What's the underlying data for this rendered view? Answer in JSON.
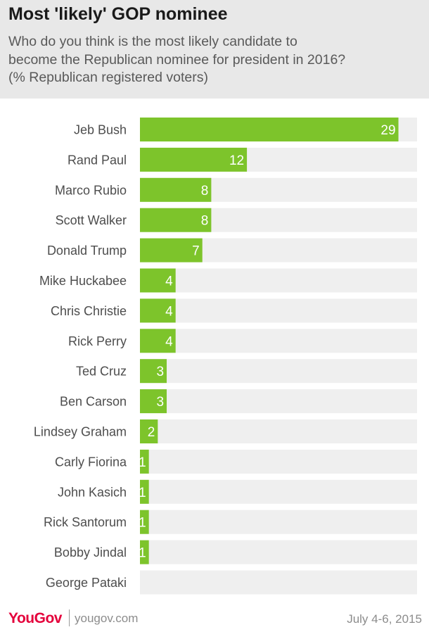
{
  "header": {
    "title": "Most 'likely' GOP nominee",
    "subtitle_lines": [
      "Who do you think is the most likely candidate to",
      "become the Republican nominee for president in 2016?",
      "(% Republican registered voters)"
    ]
  },
  "chart_data": {
    "type": "bar",
    "orientation": "horizontal",
    "categories": [
      "Jeb Bush",
      "Rand Paul",
      "Marco Rubio",
      "Scott Walker",
      "Donald Trump",
      "Mike Huckabee",
      "Chris Christie",
      "Rick Perry",
      "Ted Cruz",
      "Ben Carson",
      "Lindsey Graham",
      "Carly Fiorina",
      "John Kasich",
      "Rick Santorum",
      "Bobby Jindal",
      "George Pataki"
    ],
    "values": [
      29,
      12,
      8,
      8,
      7,
      4,
      4,
      4,
      3,
      3,
      2,
      1,
      1,
      1,
      1,
      0
    ],
    "data_labels": [
      "29",
      "12",
      "8",
      "8",
      "7",
      "4",
      "4",
      "4",
      "3",
      "3",
      "2",
      "1",
      "1",
      "1",
      "1",
      ""
    ],
    "title": "Most 'likely' GOP nominee",
    "xlabel": "",
    "ylabel": "",
    "xlim": [
      0,
      30
    ],
    "colors": {
      "bar": "#7dc42b",
      "track": "#efefef",
      "label_text": "#ffffff",
      "category_text": "#4d4d4d"
    }
  },
  "footer": {
    "logo_you": "You",
    "logo_gov": "Gov",
    "site": "yougov.com",
    "date": "July 4-6, 2015"
  }
}
